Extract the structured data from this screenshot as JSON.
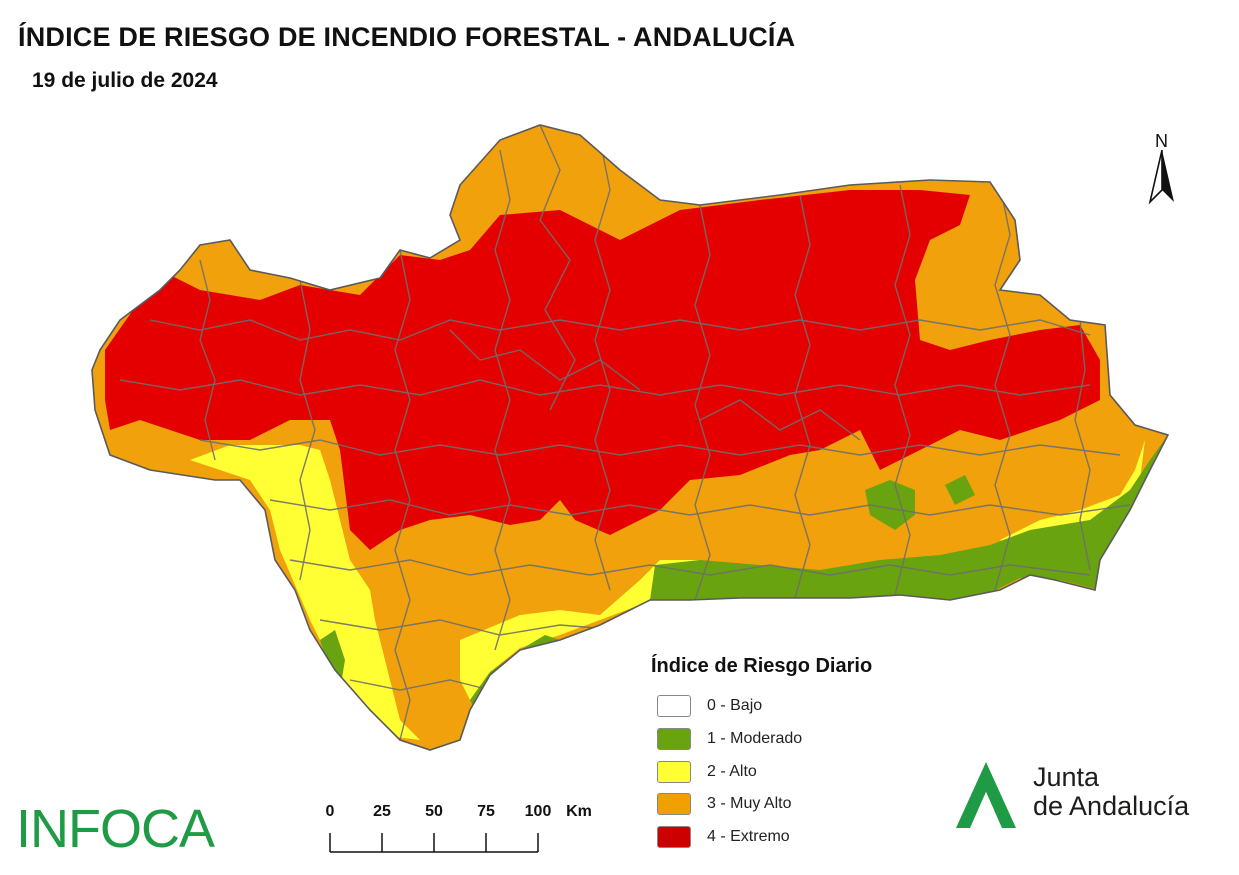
{
  "header": {
    "title": "ÍNDICE DE RIESGO DE INCENDIO FORESTAL - ANDALUCÍA",
    "date": "19 de julio de 2024"
  },
  "compass": {
    "label": "N"
  },
  "legend": {
    "title": "Índice de Riesgo Diario",
    "items": [
      {
        "label": "0 - Bajo",
        "color": "#ffffff"
      },
      {
        "label": "1 - Moderado",
        "color": "#6aa310"
      },
      {
        "label": "2 - Alto",
        "color": "#ffff33"
      },
      {
        "label": "3 - Muy Alto",
        "color": "#f0a000"
      },
      {
        "label": "4 - Extremo",
        "color": "#cc0000"
      }
    ]
  },
  "scale_bar": {
    "ticks": [
      "0",
      "25",
      "50",
      "75",
      "100"
    ],
    "unit": "Km"
  },
  "map_colors": {
    "extremo": "#e50000",
    "muy_alto": "#f1a10c",
    "alto": "#ffff33",
    "moderado": "#6aa310",
    "borders": "#6e6e6e"
  },
  "logos": {
    "infoca": "INFOCA",
    "junta_line1": "Junta",
    "junta_line2": "de Andalucía"
  }
}
